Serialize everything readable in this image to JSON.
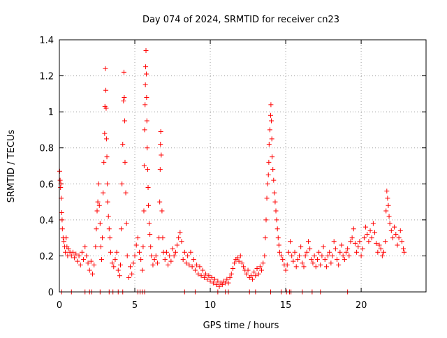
{
  "chart_data": {
    "type": "scatter",
    "title": "Day 074 of 2024, SRMTID for receiver cn23",
    "xlabel": "GPS time / hours",
    "ylabel": "SRMTID / TECUs",
    "xlim": [
      0,
      24.3
    ],
    "ylim": [
      0,
      1.4
    ],
    "xticks": [
      0,
      5,
      10,
      15,
      20
    ],
    "xtick_labels": [
      "0",
      "5",
      "10",
      "15",
      "20"
    ],
    "yticks": [
      0,
      0.2,
      0.4,
      0.6,
      0.8,
      1,
      1.2,
      1.4
    ],
    "ytick_labels": [
      "0",
      "0.2",
      "0.4",
      "0.6",
      "0.8",
      "1",
      "1.2",
      "1.4"
    ],
    "grid": true,
    "marker": "+",
    "marker_color": "#ff0000",
    "series": [
      {
        "name": "SRMTID",
        "points": [
          [
            0.02,
            0.67
          ],
          [
            0.05,
            0.62
          ],
          [
            0.08,
            0.58
          ],
          [
            0.1,
            0.6
          ],
          [
            0.12,
            0.52
          ],
          [
            0.15,
            0.44
          ],
          [
            0.18,
            0.4
          ],
          [
            0.2,
            0.35
          ],
          [
            0.25,
            0.3
          ],
          [
            0.3,
            0.28
          ],
          [
            0.35,
            0.25
          ],
          [
            0.4,
            0.22
          ],
          [
            0.45,
            0.3
          ],
          [
            0.5,
            0.25
          ],
          [
            0.55,
            0.2
          ],
          [
            0.6,
            0.24
          ],
          [
            0.7,
            0.22
          ],
          [
            0.8,
            0.2
          ],
          [
            0.9,
            0.22
          ],
          [
            1.0,
            0.19
          ],
          [
            1.1,
            0.21
          ],
          [
            1.2,
            0.17
          ],
          [
            1.3,
            0.2
          ],
          [
            1.4,
            0.15
          ],
          [
            1.5,
            0.22
          ],
          [
            1.6,
            0.18
          ],
          [
            1.7,
            0.25
          ],
          [
            1.8,
            0.2
          ],
          [
            1.9,
            0.16
          ],
          [
            2.0,
            0.12
          ],
          [
            2.1,
            0.17
          ],
          [
            2.2,
            0.1
          ],
          [
            2.3,
            0.15
          ],
          [
            2.4,
            0.25
          ],
          [
            2.45,
            0.35
          ],
          [
            2.5,
            0.45
          ],
          [
            2.55,
            0.5
          ],
          [
            2.6,
            0.6
          ],
          [
            2.65,
            0.48
          ],
          [
            2.7,
            0.38
          ],
          [
            2.75,
            0.25
          ],
          [
            2.8,
            0.18
          ],
          [
            2.85,
            0.3
          ],
          [
            2.9,
            0.55
          ],
          [
            2.95,
            0.72
          ],
          [
            3.0,
            0.88
          ],
          [
            3.02,
            1.03
          ],
          [
            3.05,
            1.24
          ],
          [
            3.08,
            1.12
          ],
          [
            3.1,
            1.02
          ],
          [
            3.12,
            0.85
          ],
          [
            3.15,
            0.75
          ],
          [
            3.18,
            0.6
          ],
          [
            3.2,
            0.5
          ],
          [
            3.25,
            0.42
          ],
          [
            3.3,
            0.35
          ],
          [
            3.35,
            0.3
          ],
          [
            3.4,
            0.22
          ],
          [
            3.5,
            0.16
          ],
          [
            3.6,
            0.14
          ],
          [
            3.7,
            0.18
          ],
          [
            3.8,
            0.22
          ],
          [
            3.9,
            0.12
          ],
          [
            4.0,
            0.09
          ],
          [
            4.05,
            0.15
          ],
          [
            4.1,
            0.35
          ],
          [
            4.15,
            0.6
          ],
          [
            4.2,
            0.82
          ],
          [
            4.25,
            1.06
          ],
          [
            4.28,
            1.22
          ],
          [
            4.3,
            1.08
          ],
          [
            4.33,
            0.95
          ],
          [
            4.35,
            0.72
          ],
          [
            4.4,
            0.55
          ],
          [
            4.45,
            0.38
          ],
          [
            4.5,
            0.2
          ],
          [
            4.6,
            0.08
          ],
          [
            4.7,
            0.14
          ],
          [
            4.8,
            0.1
          ],
          [
            4.9,
            0.16
          ],
          [
            5.0,
            0.2
          ],
          [
            5.1,
            0.26
          ],
          [
            5.2,
            0.3
          ],
          [
            5.3,
            0.22
          ],
          [
            5.4,
            0.18
          ],
          [
            5.5,
            0.12
          ],
          [
            5.55,
            0.25
          ],
          [
            5.6,
            0.45
          ],
          [
            5.62,
            0.7
          ],
          [
            5.65,
            0.9
          ],
          [
            5.68,
            1.04
          ],
          [
            5.7,
            1.15
          ],
          [
            5.72,
            1.25
          ],
          [
            5.74,
            1.34
          ],
          [
            5.76,
            1.21
          ],
          [
            5.78,
            1.08
          ],
          [
            5.8,
            0.95
          ],
          [
            5.82,
            0.8
          ],
          [
            5.85,
            0.68
          ],
          [
            5.88,
            0.58
          ],
          [
            5.9,
            0.48
          ],
          [
            5.95,
            0.38
          ],
          [
            6.0,
            0.32
          ],
          [
            6.05,
            0.25
          ],
          [
            6.1,
            0.2
          ],
          [
            6.2,
            0.15
          ],
          [
            6.3,
            0.18
          ],
          [
            6.4,
            0.2
          ],
          [
            6.5,
            0.16
          ],
          [
            6.6,
            0.3
          ],
          [
            6.65,
            0.5
          ],
          [
            6.68,
            0.68
          ],
          [
            6.7,
            0.82
          ],
          [
            6.72,
            0.89
          ],
          [
            6.75,
            0.76
          ],
          [
            6.8,
            0.45
          ],
          [
            6.85,
            0.3
          ],
          [
            6.9,
            0.22
          ],
          [
            7.0,
            0.18
          ],
          [
            7.1,
            0.22
          ],
          [
            7.2,
            0.15
          ],
          [
            7.3,
            0.2
          ],
          [
            7.4,
            0.17
          ],
          [
            7.5,
            0.24
          ],
          [
            7.6,
            0.2
          ],
          [
            7.7,
            0.22
          ],
          [
            7.8,
            0.26
          ],
          [
            7.9,
            0.3
          ],
          [
            8.0,
            0.33
          ],
          [
            8.1,
            0.28
          ],
          [
            8.2,
            0.18
          ],
          [
            8.3,
            0.22
          ],
          [
            8.4,
            0.16
          ],
          [
            8.5,
            0.2
          ],
          [
            8.6,
            0.15
          ],
          [
            8.7,
            0.22
          ],
          [
            8.8,
            0.14
          ],
          [
            8.9,
            0.18
          ],
          [
            9.0,
            0.12
          ],
          [
            9.1,
            0.15
          ],
          [
            9.2,
            0.1
          ],
          [
            9.3,
            0.14
          ],
          [
            9.4,
            0.09
          ],
          [
            9.5,
            0.12
          ],
          [
            9.6,
            0.08
          ],
          [
            9.7,
            0.1
          ],
          [
            9.8,
            0.07
          ],
          [
            9.9,
            0.09
          ],
          [
            10.0,
            0.06
          ],
          [
            10.1,
            0.08
          ],
          [
            10.2,
            0.05
          ],
          [
            10.3,
            0.07
          ],
          [
            10.4,
            0.04
          ],
          [
            10.5,
            0.06
          ],
          [
            10.6,
            0.03
          ],
          [
            10.7,
            0.05
          ],
          [
            10.8,
            0.04
          ],
          [
            10.9,
            0.06
          ],
          [
            11.0,
            0.05
          ],
          [
            11.1,
            0.07
          ],
          [
            11.2,
            0.05
          ],
          [
            11.3,
            0.08
          ],
          [
            11.4,
            0.1
          ],
          [
            11.5,
            0.13
          ],
          [
            11.6,
            0.16
          ],
          [
            11.7,
            0.18
          ],
          [
            11.8,
            0.19
          ],
          [
            11.9,
            0.17
          ],
          [
            12.0,
            0.2
          ],
          [
            12.1,
            0.16
          ],
          [
            12.2,
            0.14
          ],
          [
            12.3,
            0.12
          ],
          [
            12.4,
            0.1
          ],
          [
            12.5,
            0.12
          ],
          [
            12.6,
            0.08
          ],
          [
            12.7,
            0.09
          ],
          [
            12.8,
            0.07
          ],
          [
            12.9,
            0.11
          ],
          [
            13.0,
            0.09
          ],
          [
            13.1,
            0.13
          ],
          [
            13.2,
            0.1
          ],
          [
            13.3,
            0.14
          ],
          [
            13.4,
            0.12
          ],
          [
            13.5,
            0.16
          ],
          [
            13.6,
            0.2
          ],
          [
            13.65,
            0.3
          ],
          [
            13.7,
            0.4
          ],
          [
            13.75,
            0.52
          ],
          [
            13.8,
            0.6
          ],
          [
            13.85,
            0.65
          ],
          [
            13.88,
            0.72
          ],
          [
            13.9,
            0.82
          ],
          [
            13.95,
            0.9
          ],
          [
            14.0,
            0.98
          ],
          [
            14.02,
            1.04
          ],
          [
            14.05,
            0.95
          ],
          [
            14.08,
            0.85
          ],
          [
            14.1,
            0.75
          ],
          [
            14.15,
            0.68
          ],
          [
            14.2,
            0.62
          ],
          [
            14.25,
            0.55
          ],
          [
            14.3,
            0.5
          ],
          [
            14.35,
            0.45
          ],
          [
            14.4,
            0.4
          ],
          [
            14.45,
            0.35
          ],
          [
            14.5,
            0.3
          ],
          [
            14.55,
            0.26
          ],
          [
            14.6,
            0.22
          ],
          [
            14.7,
            0.2
          ],
          [
            14.8,
            0.18
          ],
          [
            14.9,
            0.15
          ],
          [
            15.0,
            0.12
          ],
          [
            15.1,
            0.15
          ],
          [
            15.2,
            0.22
          ],
          [
            15.3,
            0.28
          ],
          [
            15.4,
            0.2
          ],
          [
            15.5,
            0.17
          ],
          [
            15.6,
            0.22
          ],
          [
            15.7,
            0.14
          ],
          [
            15.8,
            0.18
          ],
          [
            15.9,
            0.2
          ],
          [
            16.0,
            0.25
          ],
          [
            16.1,
            0.16
          ],
          [
            16.2,
            0.14
          ],
          [
            16.3,
            0.2
          ],
          [
            16.4,
            0.22
          ],
          [
            16.5,
            0.28
          ],
          [
            16.6,
            0.24
          ],
          [
            16.7,
            0.18
          ],
          [
            16.8,
            0.16
          ],
          [
            16.9,
            0.2
          ],
          [
            17.0,
            0.14
          ],
          [
            17.1,
            0.18
          ],
          [
            17.2,
            0.22
          ],
          [
            17.3,
            0.15
          ],
          [
            17.4,
            0.2
          ],
          [
            17.5,
            0.25
          ],
          [
            17.6,
            0.18
          ],
          [
            17.7,
            0.14
          ],
          [
            17.8,
            0.2
          ],
          [
            17.9,
            0.22
          ],
          [
            18.0,
            0.16
          ],
          [
            18.1,
            0.2
          ],
          [
            18.2,
            0.28
          ],
          [
            18.3,
            0.24
          ],
          [
            18.4,
            0.18
          ],
          [
            18.5,
            0.15
          ],
          [
            18.6,
            0.22
          ],
          [
            18.7,
            0.26
          ],
          [
            18.8,
            0.2
          ],
          [
            18.9,
            0.18
          ],
          [
            19.0,
            0.22
          ],
          [
            19.1,
            0.24
          ],
          [
            19.2,
            0.2
          ],
          [
            19.3,
            0.28
          ],
          [
            19.4,
            0.3
          ],
          [
            19.5,
            0.35
          ],
          [
            19.6,
            0.27
          ],
          [
            19.7,
            0.22
          ],
          [
            19.8,
            0.25
          ],
          [
            19.9,
            0.28
          ],
          [
            20.0,
            0.2
          ],
          [
            20.1,
            0.24
          ],
          [
            20.2,
            0.3
          ],
          [
            20.3,
            0.36
          ],
          [
            20.4,
            0.32
          ],
          [
            20.5,
            0.28
          ],
          [
            20.6,
            0.34
          ],
          [
            20.7,
            0.3
          ],
          [
            20.8,
            0.38
          ],
          [
            20.9,
            0.33
          ],
          [
            21.0,
            0.27
          ],
          [
            21.1,
            0.22
          ],
          [
            21.2,
            0.26
          ],
          [
            21.3,
            0.24
          ],
          [
            21.4,
            0.2
          ],
          [
            21.5,
            0.22
          ],
          [
            21.6,
            0.28
          ],
          [
            21.65,
            0.45
          ],
          [
            21.7,
            0.56
          ],
          [
            21.75,
            0.52
          ],
          [
            21.8,
            0.48
          ],
          [
            21.85,
            0.42
          ],
          [
            21.9,
            0.38
          ],
          [
            22.0,
            0.34
          ],
          [
            22.1,
            0.3
          ],
          [
            22.2,
            0.36
          ],
          [
            22.3,
            0.32
          ],
          [
            22.4,
            0.26
          ],
          [
            22.5,
            0.3
          ],
          [
            22.6,
            0.34
          ],
          [
            22.7,
            0.28
          ],
          [
            22.8,
            0.24
          ],
          [
            22.85,
            0.22
          ]
        ],
        "zero_points_x": [
          0.15,
          0.8,
          1.7,
          2.0,
          2.15,
          2.7,
          3.3,
          3.55,
          3.9,
          4.2,
          5.2,
          5.35,
          5.5,
          5.65,
          8.3,
          9.0,
          10.5,
          11.0,
          11.2,
          12.6,
          13.0,
          14.0,
          14.7,
          15.05,
          15.25,
          15.35,
          16.1,
          16.75,
          17.3,
          19.1
        ]
      }
    ]
  }
}
